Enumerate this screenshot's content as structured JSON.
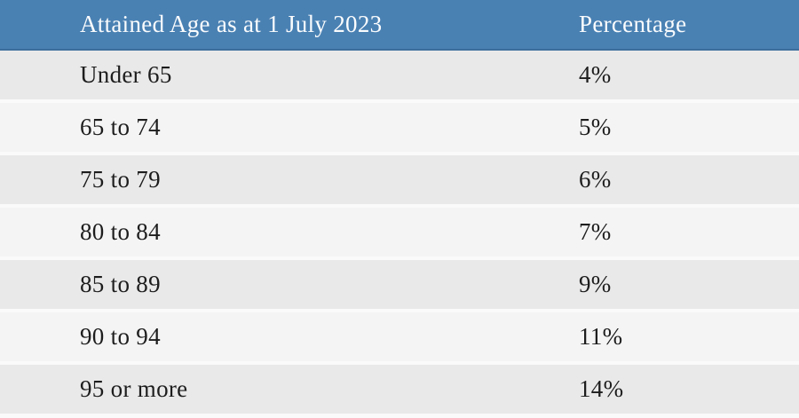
{
  "table": {
    "header": {
      "age_label": "Attained Age as at 1 July 2023",
      "percentage_label": "Percentage"
    },
    "rows": [
      {
        "age": "Under 65",
        "percentage": "4%"
      },
      {
        "age": "65 to 74",
        "percentage": "5%"
      },
      {
        "age": "75 to 79",
        "percentage": "6%"
      },
      {
        "age": "80 to 84",
        "percentage": "7%"
      },
      {
        "age": "85 to 89",
        "percentage": "9%"
      },
      {
        "age": "90 to 94",
        "percentage": "11%"
      },
      {
        "age": "95 or more",
        "percentage": "14%"
      }
    ]
  },
  "colors": {
    "header_bg": "#4a81b3",
    "header_border": "#3c6e9c",
    "header_text": "#fafcfd",
    "row_odd_bg": "#e9e9e9",
    "row_even_bg": "#f4f4f4",
    "cell_text": "#1d1d1d",
    "page_bg": "#fafafa"
  },
  "chart_data": {
    "type": "table",
    "title": "",
    "columns": [
      "Attained Age as at 1 July 2023",
      "Percentage"
    ],
    "rows": [
      [
        "Under 65",
        "4%"
      ],
      [
        "65 to 74",
        "5%"
      ],
      [
        "75 to 79",
        "6%"
      ],
      [
        "80 to 84",
        "7%"
      ],
      [
        "85 to 89",
        "9%"
      ],
      [
        "90 to 94",
        "11%"
      ],
      [
        "95 or more",
        "14%"
      ]
    ],
    "categories": [
      "Under 65",
      "65 to 74",
      "75 to 79",
      "80 to 84",
      "85 to 89",
      "90 to 94",
      "95 or more"
    ],
    "values": [
      4,
      5,
      6,
      7,
      9,
      11,
      14
    ]
  }
}
